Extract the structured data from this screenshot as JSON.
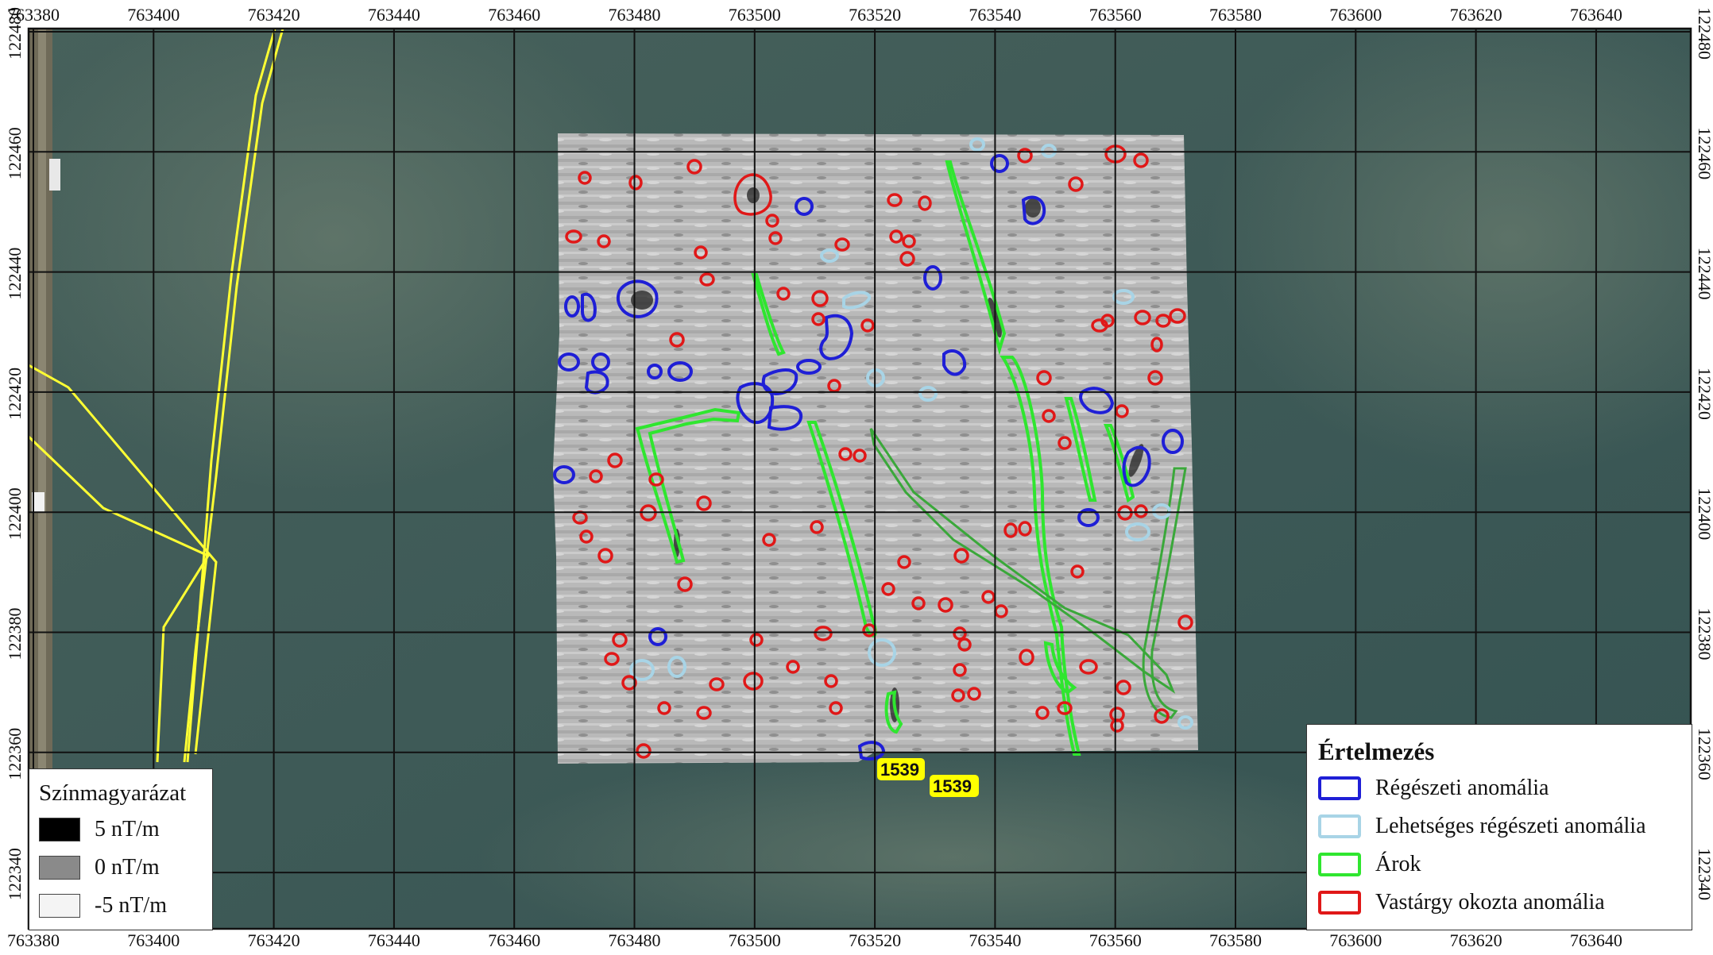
{
  "map": {
    "x_ticks": [
      "763380",
      "763400",
      "763420",
      "763440",
      "763460",
      "763480",
      "763500",
      "763520",
      "763540",
      "763560",
      "763580",
      "763600",
      "763620",
      "763640"
    ],
    "y_ticks": [
      "122480",
      "122460",
      "122440",
      "122420",
      "122400",
      "122380",
      "122360",
      "122340"
    ],
    "feature_labels": [
      "1539",
      "1539"
    ],
    "colors": {
      "regeszeti": "#1f1fd6",
      "lehetseges": "#a8d4e6",
      "arok": "#2fe62f",
      "arok_faint": "#3aa83a",
      "vastargy": "#e01818",
      "road": "#ffff33",
      "label_bg": "#ffff00"
    }
  },
  "color_legend": {
    "title": "Színmagyarázat",
    "items": [
      {
        "label": "5 nT/m",
        "color": "#000000"
      },
      {
        "label": "0 nT/m",
        "color": "#8a8a8a"
      },
      {
        "label": "-5 nT/m",
        "color": "#f4f4f4"
      }
    ]
  },
  "interpretation_legend": {
    "title": "Értelmezés",
    "items": [
      {
        "label": "Régészeti anomália",
        "color": "#1f1fd6"
      },
      {
        "label": "Lehetséges régészeti anomália",
        "color": "#a8d4e6"
      },
      {
        "label": "Árok",
        "color": "#2fe62f"
      },
      {
        "label": "Vastárgy okozta anomália",
        "color": "#e01818"
      }
    ]
  }
}
